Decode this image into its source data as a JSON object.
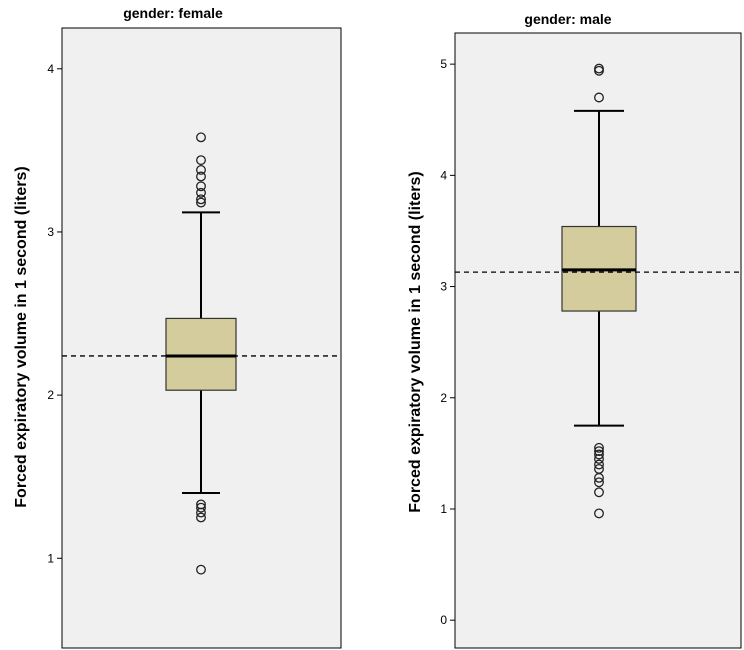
{
  "chart_data": [
    {
      "type": "boxplot",
      "title": "gender: female",
      "ylabel": "Forced expiratory volume in 1 second (liters)",
      "yticks": [
        1,
        2,
        3,
        4
      ],
      "ylim": [
        0.45,
        4.25
      ],
      "reference_line": 2.24,
      "box": {
        "whisker_low": 1.4,
        "q1": 2.03,
        "median": 2.24,
        "q3": 2.47,
        "whisker_high": 3.12
      },
      "outliers": [
        3.58,
        3.44,
        3.38,
        3.34,
        3.28,
        3.24,
        3.2,
        3.18,
        1.33,
        1.31,
        1.28,
        1.25,
        0.93
      ],
      "colors": {
        "panel": "#f0f0f0",
        "box": "#d4cc9c",
        "line": "#000000"
      }
    },
    {
      "type": "boxplot",
      "title": "gender: male",
      "ylabel": "Forced expiratory volume in 1 second (liters)",
      "yticks": [
        0,
        1,
        2,
        3,
        4,
        5
      ],
      "ylim": [
        -0.25,
        5.28
      ],
      "reference_line": 3.13,
      "box": {
        "whisker_low": 1.75,
        "q1": 2.78,
        "median": 3.15,
        "q3": 3.54,
        "whisker_high": 4.58
      },
      "outliers": [
        4.96,
        4.94,
        4.7,
        1.55,
        1.52,
        1.49,
        1.45,
        1.4,
        1.36,
        1.28,
        1.24,
        1.15,
        0.96
      ],
      "colors": {
        "panel": "#f0f0f0",
        "box": "#d4cc9c",
        "line": "#000000"
      }
    }
  ]
}
